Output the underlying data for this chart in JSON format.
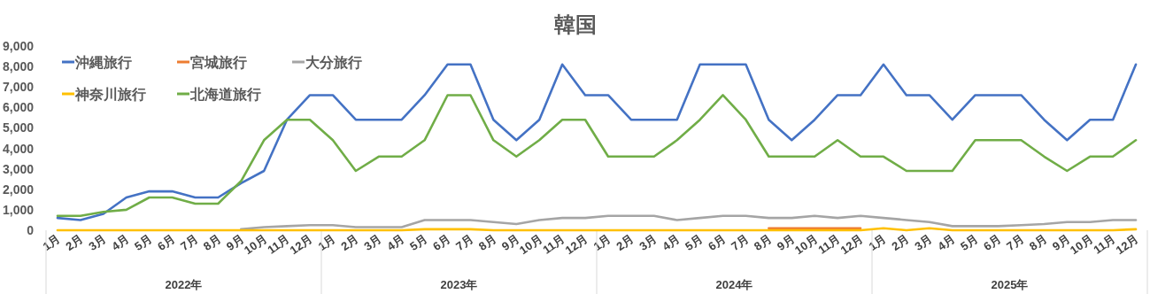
{
  "chart_data": {
    "type": "line",
    "title": "韓国",
    "categories": [
      "1月",
      "2月",
      "3月",
      "4月",
      "5月",
      "6月",
      "7月",
      "8月",
      "9月",
      "10月",
      "11月",
      "12月",
      "1月",
      "2月",
      "3月",
      "4月",
      "5月",
      "6月",
      "7月",
      "8月",
      "9月",
      "10月",
      "11月",
      "12月",
      "1月",
      "2月",
      "3月",
      "4月",
      "5月",
      "6月",
      "7月",
      "8月",
      "9月",
      "10月",
      "11月",
      "12月",
      "1月",
      "2月",
      "3月",
      "4月",
      "5月",
      "6月",
      "7月",
      "8月",
      "9月",
      "10月",
      "11月",
      "12月"
    ],
    "annotations": [
      "2022年",
      "2023年",
      "2024年",
      "2025年"
    ],
    "series": [
      {
        "name": "沖縄旅行",
        "color": "#4472c4",
        "values": [
          600,
          500,
          800,
          1600,
          1900,
          1900,
          1600,
          1600,
          2300,
          2900,
          5400,
          6600,
          6600,
          5400,
          5400,
          5400,
          6600,
          8100,
          8100,
          5400,
          4400,
          5400,
          8100,
          6600,
          6600,
          5400,
          5400,
          5400,
          8100,
          8100,
          8100,
          5400,
          4400,
          5400,
          6600,
          6600,
          8100,
          6600,
          6600,
          5400,
          6600,
          6600,
          6600,
          5400,
          4400,
          5400,
          5400,
          8100
        ]
      },
      {
        "name": "宮城旅行",
        "color": "#ed7d31",
        "values": [
          null,
          null,
          null,
          null,
          null,
          null,
          null,
          null,
          null,
          null,
          null,
          null,
          null,
          null,
          null,
          null,
          null,
          null,
          null,
          null,
          null,
          null,
          null,
          null,
          null,
          null,
          null,
          null,
          null,
          null,
          null,
          100,
          100,
          100,
          100,
          100,
          null,
          null,
          null,
          null,
          null,
          null,
          null,
          null,
          null,
          null,
          null,
          null
        ]
      },
      {
        "name": "大分旅行",
        "color": "#a5a5a5",
        "values": [
          null,
          null,
          null,
          null,
          null,
          null,
          null,
          null,
          50,
          150,
          200,
          250,
          250,
          150,
          150,
          150,
          500,
          500,
          500,
          400,
          300,
          500,
          600,
          600,
          700,
          700,
          700,
          500,
          600,
          700,
          700,
          600,
          600,
          700,
          600,
          700,
          600,
          500,
          400,
          200,
          200,
          200,
          250,
          300,
          400,
          400,
          500,
          500
        ]
      },
      {
        "name": "神奈川旅行",
        "color": "#ffc000",
        "values": [
          0,
          0,
          0,
          0,
          0,
          0,
          0,
          0,
          0,
          0,
          0,
          0,
          0,
          0,
          0,
          0,
          50,
          50,
          50,
          0,
          0,
          0,
          0,
          0,
          0,
          0,
          0,
          0,
          0,
          0,
          0,
          0,
          0,
          0,
          0,
          0,
          100,
          0,
          100,
          0,
          0,
          0,
          0,
          0,
          0,
          0,
          0,
          50
        ]
      },
      {
        "name": "北海道旅行",
        "color": "#70ad47",
        "values": [
          700,
          700,
          900,
          1000,
          1600,
          1600,
          1300,
          1300,
          2400,
          4400,
          5400,
          5400,
          4400,
          2900,
          3600,
          3600,
          4400,
          6600,
          6600,
          4400,
          3600,
          4400,
          5400,
          5400,
          3600,
          3600,
          3600,
          4400,
          5400,
          6600,
          5400,
          3600,
          3600,
          3600,
          4400,
          3600,
          3600,
          2900,
          2900,
          2900,
          4400,
          4400,
          4400,
          3600,
          2900,
          3600,
          3600,
          4400
        ]
      }
    ],
    "ylim": [
      0,
      9000
    ],
    "yticks": [
      {
        "value": 0,
        "label": "0"
      },
      {
        "value": 1000,
        "label": "1,000"
      },
      {
        "value": 2000,
        "label": "2,000"
      },
      {
        "value": 3000,
        "label": "3,000"
      },
      {
        "value": 4000,
        "label": "4,000"
      },
      {
        "value": 5000,
        "label": "5,000"
      },
      {
        "value": 6000,
        "label": "6,000"
      },
      {
        "value": 7000,
        "label": "7,000"
      },
      {
        "value": 8000,
        "label": "8,000"
      },
      {
        "value": 9000,
        "label": "9,000"
      }
    ],
    "legend": "top left"
  }
}
